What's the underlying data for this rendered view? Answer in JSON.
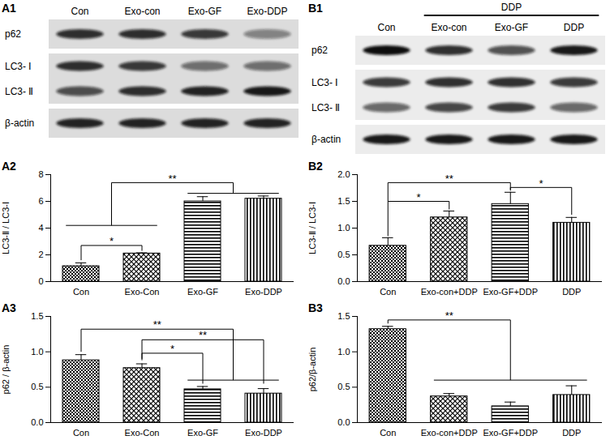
{
  "chart_data": [
    {
      "type": "bar",
      "title": "A2",
      "y_label": "LC3-Ⅱ / LC3-Ⅰ",
      "categories": [
        "Con",
        "Exo-Con",
        "Exo-GF",
        "Exo-DDP"
      ],
      "values": [
        1.15,
        2.1,
        6.0,
        6.2
      ],
      "errors": [
        0.25,
        0.05,
        0.35,
        0.2
      ],
      "color": "#000000",
      "ylim": [
        0,
        8
      ],
      "yticks": [
        0,
        2,
        4,
        6,
        8
      ],
      "brackets": [
        {
          "left": [
            0
          ],
          "right": [
            1
          ],
          "base_left": 1.6,
          "base_right": 2.3,
          "y": 2.7,
          "label": "*"
        },
        {
          "left": [
            0,
            1
          ],
          "right": [
            2,
            3
          ],
          "base_left": 4.2,
          "base_right": 6.6,
          "y": 7.4,
          "label": "**"
        }
      ]
    },
    {
      "type": "bar",
      "title": "A3",
      "y_label": "p62 / β-actin",
      "categories": [
        "Con",
        "Exo-Con",
        "Exo-GF",
        "Exo-DDP"
      ],
      "values": [
        0.88,
        0.77,
        0.47,
        0.41
      ],
      "errors": [
        0.08,
        0.06,
        0.04,
        0.07
      ],
      "color": "#000000",
      "ylim": [
        0,
        1.5
      ],
      "yticks": [
        {
          "value": 0,
          "label": "0.0"
        },
        {
          "value": 0.5,
          "label": "0.5"
        },
        {
          "value": 1,
          "label": "1.0"
        },
        {
          "value": 1.5,
          "label": "1.5"
        }
      ],
      "brackets": [
        {
          "left": [
            0
          ],
          "right": [
            2,
            3
          ],
          "base_left": 1.0,
          "base_right": 0.6,
          "y": 1.32,
          "label": "**"
        },
        {
          "left": [
            1
          ],
          "right": [
            3
          ],
          "base_left": 0.9,
          "base_right": 0.55,
          "y": 1.17,
          "label": "**"
        },
        {
          "left": [
            1
          ],
          "right": [
            2
          ],
          "base_left": 0.88,
          "base_right": 0.55,
          "y": 0.98,
          "label": "*"
        }
      ]
    },
    {
      "type": "bar",
      "title": "B2",
      "y_label": "LC3-Ⅱ / LC3-Ⅰ",
      "categories": [
        "Con",
        "Exo-con+DDP",
        "Exo-GF+DDP",
        "DDP"
      ],
      "values": [
        0.67,
        1.2,
        1.45,
        1.1
      ],
      "errors": [
        0.15,
        0.12,
        0.22,
        0.1
      ],
      "color": "#000000",
      "ylim": [
        0,
        2
      ],
      "yticks": [
        {
          "value": 0,
          "label": "0.0"
        },
        {
          "value": 0.5,
          "label": "0.5"
        },
        {
          "value": 1,
          "label": "1.0"
        },
        {
          "value": 1.5,
          "label": "1.5"
        },
        {
          "value": 2,
          "label": "2.0"
        }
      ],
      "brackets": [
        {
          "left": [
            0
          ],
          "right": [
            1
          ],
          "base_left": 0.85,
          "base_right": 1.35,
          "y": 1.5,
          "label": "*"
        },
        {
          "left": [
            0
          ],
          "right": [
            2
          ],
          "base_left": 1.5,
          "base_right": 1.7,
          "y": 1.85,
          "label": "**"
        },
        {
          "left": [
            2
          ],
          "right": [
            3
          ],
          "base_left": 1.72,
          "base_right": 1.25,
          "y": 1.76,
          "label": "*"
        }
      ]
    },
    {
      "type": "bar",
      "title": "B3",
      "y_label": "p62/β-actin",
      "categories": [
        "Con",
        "Exo-con+DDP",
        "Exo-GF+DDP",
        "DDP"
      ],
      "values": [
        1.32,
        0.37,
        0.23,
        0.39
      ],
      "errors": [
        0.04,
        0.04,
        0.06,
        0.13
      ],
      "color": "#000000",
      "ylim": [
        0,
        1.5
      ],
      "yticks": [
        {
          "value": 0,
          "label": "0.0"
        },
        {
          "value": 0.5,
          "label": "0.5"
        },
        {
          "value": 1,
          "label": "1.0"
        },
        {
          "value": 1.5,
          "label": "1.5"
        }
      ],
      "brackets": [
        {
          "left": [
            0
          ],
          "right": [
            1,
            2,
            3
          ],
          "base_left": 1.4,
          "base_right": 0.6,
          "y": 1.45,
          "label": "**"
        }
      ]
    }
  ],
  "blots": [
    {
      "title": "A1",
      "lanes": [
        "Con",
        "Exo-con",
        "Exo-GF",
        "Exo-DDP"
      ],
      "strips": [
        {
          "rows": [
            {
              "label": "p62",
              "intensity": [
                0.85,
                0.85,
                0.8,
                0.45
              ]
            }
          ]
        },
        {
          "rows": [
            {
              "label": "LC3- Ⅰ",
              "intensity": [
                0.85,
                0.8,
                0.55,
                0.55
              ]
            },
            {
              "label": "LC3- Ⅱ",
              "intensity": [
                0.7,
                0.85,
                0.9,
                0.95
              ]
            }
          ]
        },
        {
          "rows": [
            {
              "label": "β-actin",
              "intensity": [
                0.9,
                0.9,
                0.9,
                0.9
              ]
            }
          ]
        }
      ]
    },
    {
      "title": "B1",
      "header": {
        "label": "DDP",
        "lanes": [
          1,
          2,
          3
        ]
      },
      "lanes": [
        "Con",
        "Exo-con",
        "Exo-GF",
        "DDP"
      ],
      "strips": [
        {
          "rows": [
            {
              "label": "p62",
              "intensity": [
                1.0,
                0.85,
                0.7,
                0.95
              ]
            }
          ]
        },
        {
          "rows": [
            {
              "label": "LC3- Ⅰ",
              "intensity": [
                0.8,
                0.85,
                0.85,
                0.8
              ]
            },
            {
              "label": "LC3- Ⅱ",
              "intensity": [
                0.6,
                0.75,
                0.8,
                0.6
              ]
            }
          ]
        },
        {
          "rows": [
            {
              "label": "β-actin",
              "intensity": [
                0.95,
                0.95,
                0.95,
                0.95
              ]
            }
          ]
        }
      ]
    }
  ]
}
